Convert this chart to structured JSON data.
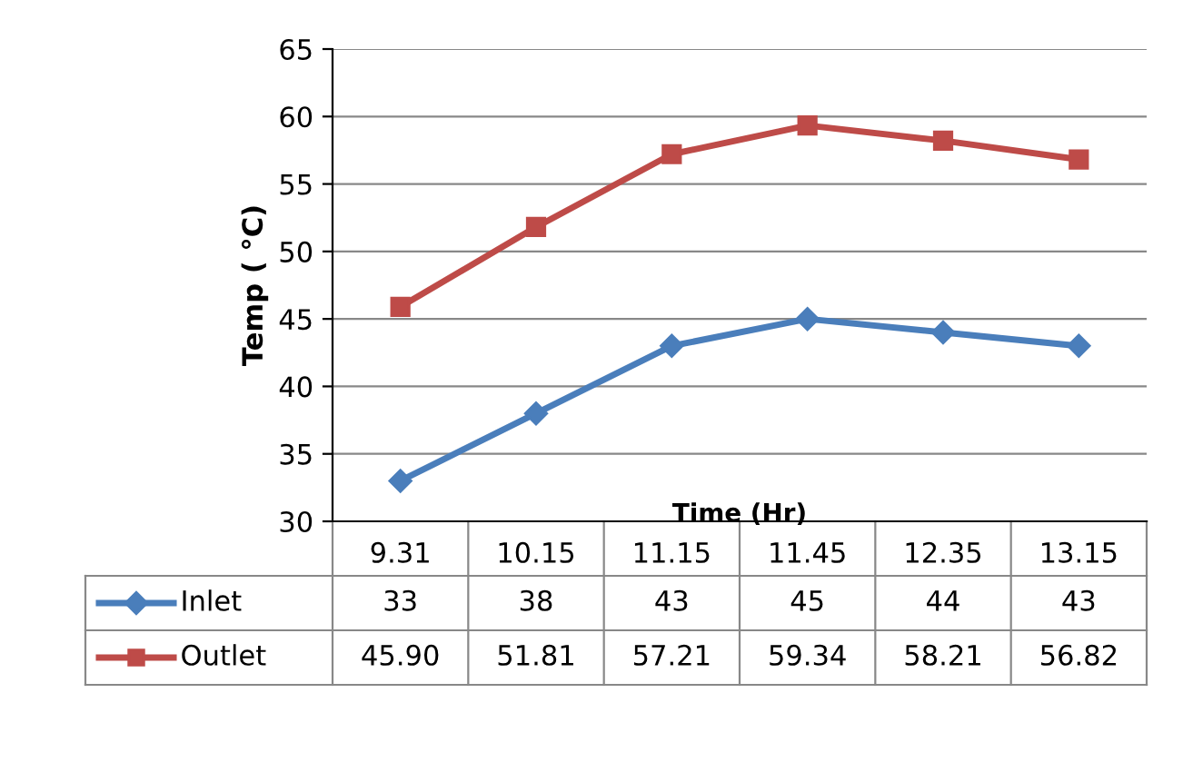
{
  "chart_data": {
    "type": "line",
    "xlabel": "Time (Hr)",
    "ylabel": "Temp ( °C)",
    "categories": [
      "9.31",
      "10.15",
      "11.15",
      "11.45",
      "12.35",
      "13.15"
    ],
    "ylim": [
      30,
      65
    ],
    "yticks": [
      30,
      35,
      40,
      45,
      50,
      55,
      60,
      65
    ],
    "grid": "y",
    "legend": "bottom",
    "series": [
      {
        "name": "Inlet",
        "color": "#4a7ebb",
        "marker": "diamond",
        "values": [
          33,
          38,
          43,
          45,
          44,
          43
        ],
        "value_labels": [
          "33",
          "38",
          "43",
          "45",
          "44",
          "43"
        ]
      },
      {
        "name": "Outlet",
        "color": "#be4b48",
        "marker": "square",
        "values": [
          45.9,
          51.81,
          57.21,
          59.34,
          58.21,
          56.82
        ],
        "value_labels": [
          "45.90",
          "51.81",
          "57.21",
          "59.34",
          "58.21",
          "56.82"
        ]
      }
    ]
  }
}
